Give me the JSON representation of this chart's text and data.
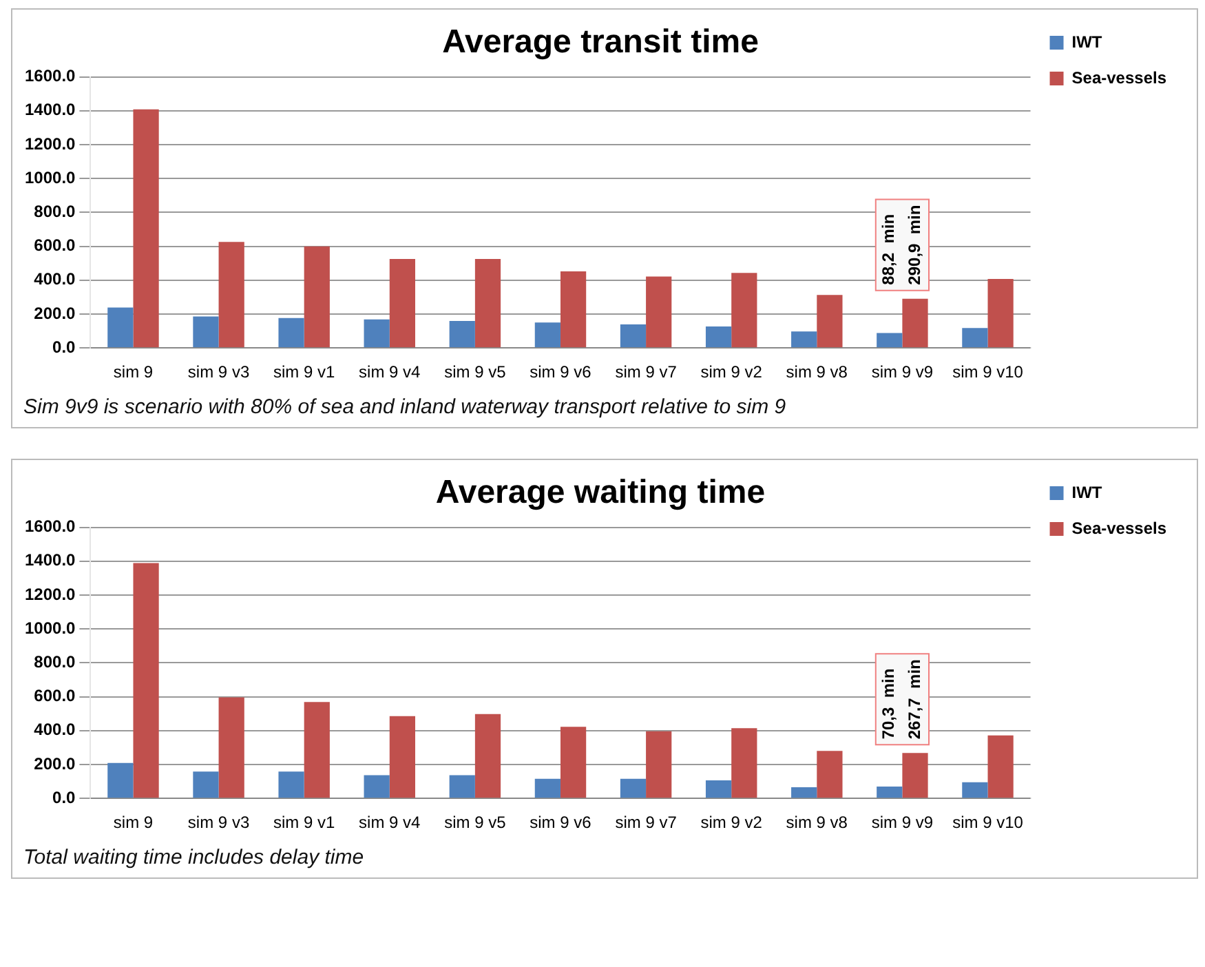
{
  "chart_data": [
    {
      "type": "bar",
      "title": "Average transit time",
      "categories": [
        "sim 9",
        "sim 9 v3",
        "sim 9 v1",
        "sim 9 v4",
        "sim 9 v5",
        "sim 9 v6",
        "sim 9 v7",
        "sim 9 v2",
        "sim 9 v8",
        "sim 9 v9",
        "sim 9 v10"
      ],
      "series": [
        {
          "name": "IWT",
          "color": "#4f81bd",
          "values": [
            239,
            186,
            177,
            168,
            159,
            150,
            139,
            127,
            97,
            88.2,
            118
          ],
          "value_labels": [
            null,
            null,
            null,
            null,
            null,
            null,
            null,
            null,
            null,
            "88,2  min",
            null
          ]
        },
        {
          "name": "Sea-vessels",
          "color": "#c0504d",
          "values": [
            1408,
            626,
            599,
            525,
            525,
            452,
            422,
            443,
            313,
            290.9,
            407
          ],
          "value_labels": [
            null,
            null,
            null,
            null,
            null,
            null,
            null,
            null,
            null,
            "290,9  min",
            null
          ]
        }
      ],
      "ylim": [
        0,
        1600
      ],
      "yticks": [
        {
          "value": 0,
          "label": "0.0"
        },
        {
          "value": 200,
          "label": "200.0"
        },
        {
          "value": 400,
          "label": "400.0"
        },
        {
          "value": 600,
          "label": "600.0"
        },
        {
          "value": 800,
          "label": "800.0"
        },
        {
          "value": 1000,
          "label": "1000.0"
        },
        {
          "value": 1200,
          "label": "1200.0"
        },
        {
          "value": 1400,
          "label": "1400.0"
        },
        {
          "value": 1600,
          "label": "1600.0"
        }
      ],
      "grid": "y",
      "legend": "top right",
      "annotations": [
        "Sim 9v9 is scenario with 80% of sea and inland waterway transport relative to sim 9"
      ]
    },
    {
      "type": "bar",
      "title": "Average waiting time",
      "categories": [
        "sim 9",
        "sim 9 v3",
        "sim 9 v1",
        "sim 9 v4",
        "sim 9 v5",
        "sim 9 v6",
        "sim 9 v7",
        "sim 9 v2",
        "sim 9 v8",
        "sim 9 v9",
        "sim 9 v10"
      ],
      "series": [
        {
          "name": "IWT",
          "color": "#4f81bd",
          "values": [
            209,
            158,
            158,
            137,
            137,
            116,
            116,
            107,
            66,
            70.3,
            95
          ],
          "value_labels": [
            null,
            null,
            null,
            null,
            null,
            null,
            null,
            null,
            null,
            "70,3  min",
            null
          ]
        },
        {
          "name": "Sea-vessels",
          "color": "#c0504d",
          "values": [
            1389,
            596,
            569,
            486,
            498,
            423,
            396,
            414,
            280,
            267.7,
            372
          ],
          "value_labels": [
            null,
            null,
            null,
            null,
            null,
            null,
            null,
            null,
            null,
            "267,7  min",
            null
          ]
        }
      ],
      "ylim": [
        0,
        1600
      ],
      "yticks": [
        {
          "value": 0,
          "label": "0.0"
        },
        {
          "value": 200,
          "label": "200.0"
        },
        {
          "value": 400,
          "label": "400.0"
        },
        {
          "value": 600,
          "label": "600.0"
        },
        {
          "value": 800,
          "label": "800.0"
        },
        {
          "value": 1000,
          "label": "1000.0"
        },
        {
          "value": 1200,
          "label": "1200.0"
        },
        {
          "value": 1400,
          "label": "1400.0"
        },
        {
          "value": 1600,
          "label": "1600.0"
        }
      ],
      "grid": "y",
      "legend": "top right",
      "annotations": [
        "Total waiting time includes delay time"
      ]
    }
  ]
}
